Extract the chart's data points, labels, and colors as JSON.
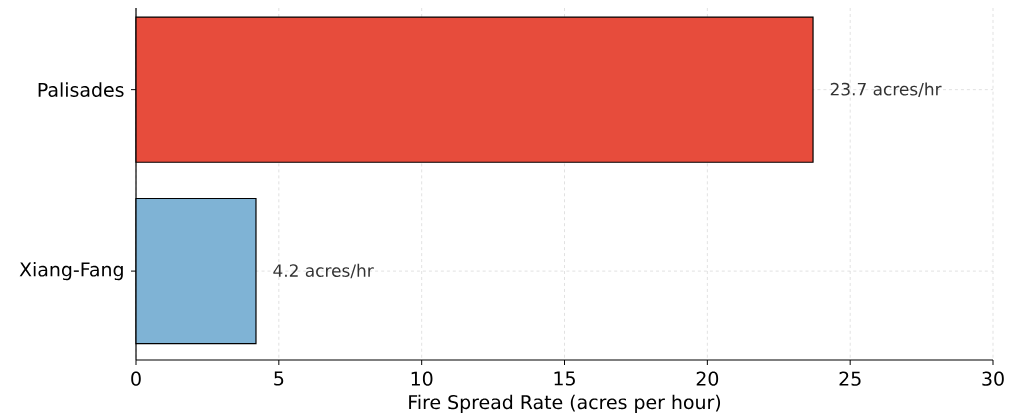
{
  "chart_data": {
    "type": "bar",
    "orientation": "horizontal",
    "categories": [
      "Palisades",
      "Xiang-Fang"
    ],
    "values": [
      23.7,
      4.2
    ],
    "colors": [
      "#e74c3c",
      "#7fb3d5"
    ],
    "value_labels": [
      "23.7 acres/hr",
      "4.2 acres/hr"
    ],
    "xlabel": "Fire Spread Rate (acres per hour)",
    "xlim": [
      0,
      30
    ],
    "xticks": [
      0,
      5,
      10,
      15,
      20,
      25,
      30
    ],
    "grid": true
  }
}
